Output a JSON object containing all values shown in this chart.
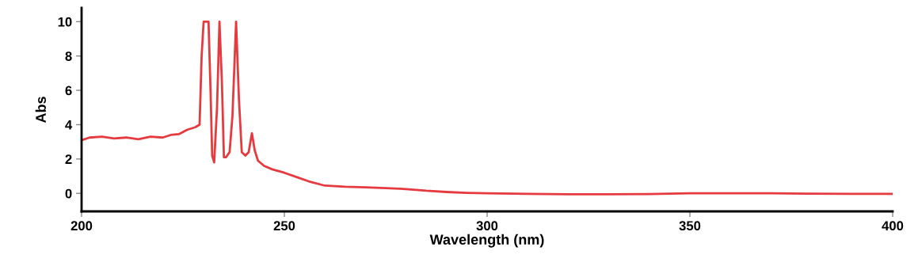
{
  "chart_data": {
    "type": "line",
    "xlabel": "Wavelength (nm)",
    "ylabel": "Abs",
    "xlim": [
      200,
      400
    ],
    "ylim": [
      -1.05,
      10.8
    ],
    "xticks": [
      200,
      250,
      300,
      350,
      400
    ],
    "yticks": [
      0,
      2,
      4,
      6,
      8,
      10
    ],
    "grid": false,
    "marker": "none",
    "line_style": "solid",
    "series": [
      {
        "color": "#e53a3f",
        "x": [
          200,
          202,
          205,
          208,
          211,
          214,
          217,
          220,
          222,
          224,
          226,
          228,
          229.1,
          229.6,
          230.1,
          231.3,
          231.8,
          232.2,
          232.7,
          233.4,
          234.0,
          234.6,
          235.1,
          235.6,
          236.5,
          237.2,
          238.1,
          238.8,
          239.5,
          240.4,
          241.2,
          242.0,
          242.7,
          243.5,
          245,
          247,
          250,
          253,
          256,
          260,
          265,
          270,
          275,
          280,
          285,
          290,
          295,
          300,
          310,
          320,
          330,
          340,
          350,
          360,
          370,
          380,
          390,
          400
        ],
        "values": [
          3.1,
          3.25,
          3.3,
          3.2,
          3.25,
          3.15,
          3.3,
          3.25,
          3.4,
          3.45,
          3.7,
          3.85,
          4.0,
          8.0,
          10.0,
          10.0,
          6.0,
          2.2,
          1.8,
          5.0,
          10.0,
          6.5,
          2.1,
          2.1,
          2.4,
          4.5,
          10.0,
          5.5,
          2.4,
          2.2,
          2.4,
          3.5,
          2.5,
          1.9,
          1.6,
          1.4,
          1.2,
          0.95,
          0.7,
          0.45,
          0.38,
          0.35,
          0.3,
          0.25,
          0.15,
          0.08,
          0.03,
          0.0,
          -0.03,
          -0.05,
          -0.05,
          -0.04,
          0.0,
          0.0,
          0.0,
          -0.02,
          -0.03,
          -0.03
        ]
      }
    ]
  }
}
